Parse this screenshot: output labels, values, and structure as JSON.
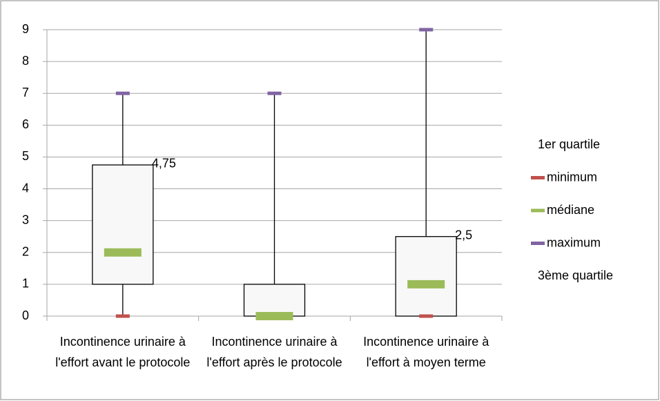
{
  "chart_data": {
    "type": "box",
    "categories": [
      "Incontinence urinaire à l'effort avant le protocole",
      "Incontinence urinaire à l'effort après le protocole",
      "Incontinence urinaire à l'effort à moyen terme"
    ],
    "series": [
      {
        "name": "1er quartile",
        "values": [
          1,
          0,
          0
        ]
      },
      {
        "name": "minimum",
        "color": "#c0504d",
        "values": [
          0,
          0,
          0
        ]
      },
      {
        "name": "médiane",
        "color": "#9bbb59",
        "values": [
          2,
          0,
          1
        ]
      },
      {
        "name": "maximum",
        "color": "#8064a2",
        "values": [
          7,
          7,
          9
        ]
      },
      {
        "name": "3ème quartile",
        "values": [
          4.75,
          1,
          2.5
        ],
        "value_labels": [
          "4,75",
          null,
          "2,5"
        ]
      }
    ],
    "ylim": [
      0,
      9
    ],
    "yticks": [
      0,
      1,
      2,
      3,
      4,
      5,
      6,
      7,
      8,
      9
    ],
    "grid": true
  }
}
